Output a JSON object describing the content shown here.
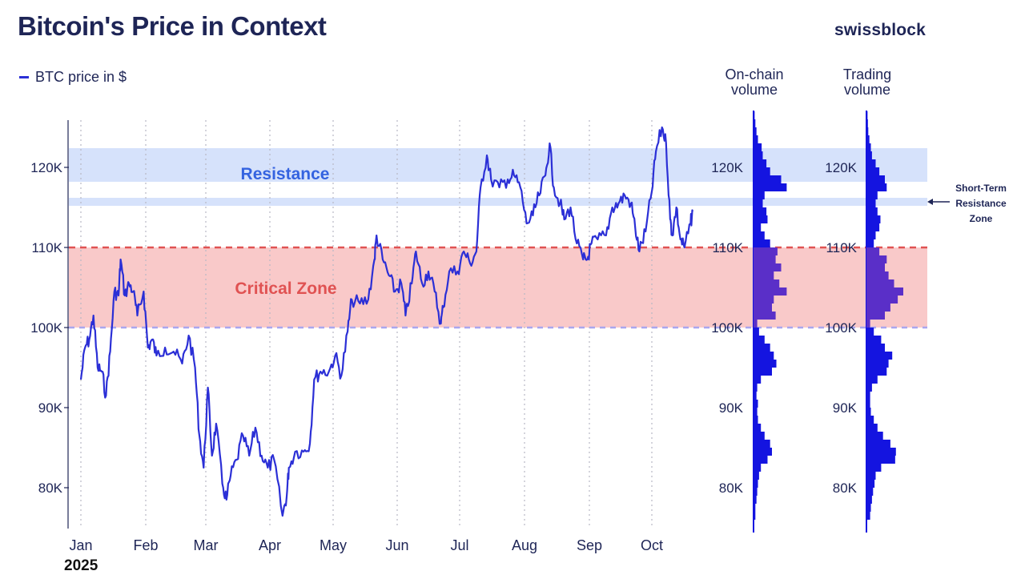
{
  "header": {
    "title": "Bitcoin's Price in Context",
    "brand": "swissblock"
  },
  "legend": {
    "label": "BTC price in $"
  },
  "panels": {
    "onchain_title": [
      "On-chain",
      "volume"
    ],
    "trading_title": [
      "Trading",
      "volume"
    ]
  },
  "annotations": {
    "resistance": "Resistance",
    "critical_zone": "Critical Zone",
    "short_term": [
      "Short-Term",
      "Resistance",
      "Zone"
    ]
  },
  "year_label": "2025",
  "colors": {
    "line": "#2b2fd6",
    "resistance_band": "#d6e2fb",
    "critical_band": "#f9c9c9",
    "critical_line": "#e05252",
    "support_line": "#a9a6ee",
    "volume_bar": "#1414e0",
    "volume_overlap": "#5a2fc8",
    "resistance_text": "#3463e0",
    "critical_text": "#e05252"
  },
  "chart_data": {
    "type": "line",
    "title": "Bitcoin's Price in Context",
    "ylabel": "",
    "xlabel": "",
    "y_ticks": [
      80000,
      90000,
      100000,
      110000,
      120000
    ],
    "y_tick_labels": [
      "80K",
      "90K",
      "100K",
      "110K",
      "120K"
    ],
    "ylim": [
      75000,
      127000
    ],
    "x_tick_labels": [
      "Jan",
      "Feb",
      "Mar",
      "Apr",
      "May",
      "Jun",
      "Jul",
      "Aug",
      "Sep",
      "Oct"
    ],
    "series": [
      {
        "name": "BTC price in $",
        "points": [
          [
            "2025-01-01",
            93500
          ],
          [
            "2025-01-03",
            97500
          ],
          [
            "2025-01-05",
            98500
          ],
          [
            "2025-01-07",
            101500
          ],
          [
            "2025-01-09",
            95000
          ],
          [
            "2025-01-11",
            94500
          ],
          [
            "2025-01-13",
            91500
          ],
          [
            "2025-01-15",
            97000
          ],
          [
            "2025-01-17",
            104500
          ],
          [
            "2025-01-19",
            104000
          ],
          [
            "2025-01-20",
            108500
          ],
          [
            "2025-01-22",
            104000
          ],
          [
            "2025-01-24",
            105500
          ],
          [
            "2025-01-26",
            104500
          ],
          [
            "2025-01-28",
            101500
          ],
          [
            "2025-01-31",
            104500
          ],
          [
            "2025-02-02",
            97500
          ],
          [
            "2025-02-04",
            98500
          ],
          [
            "2025-02-06",
            96500
          ],
          [
            "2025-02-10",
            97500
          ],
          [
            "2025-02-14",
            97000
          ],
          [
            "2025-02-18",
            95500
          ],
          [
            "2025-02-21",
            99000
          ],
          [
            "2025-02-24",
            95000
          ],
          [
            "2025-02-26",
            86500
          ],
          [
            "2025-02-28",
            82500
          ],
          [
            "2025-03-02",
            92500
          ],
          [
            "2025-03-04",
            84000
          ],
          [
            "2025-03-06",
            88000
          ],
          [
            "2025-03-09",
            80500
          ],
          [
            "2025-03-11",
            78500
          ],
          [
            "2025-03-13",
            81500
          ],
          [
            "2025-03-16",
            83500
          ],
          [
            "2025-03-19",
            86500
          ],
          [
            "2025-03-22",
            84000
          ],
          [
            "2025-03-25",
            87500
          ],
          [
            "2025-03-28",
            84000
          ],
          [
            "2025-03-31",
            82500
          ],
          [
            "2025-04-03",
            83500
          ],
          [
            "2025-04-07",
            76500
          ],
          [
            "2025-04-09",
            79000
          ],
          [
            "2025-04-10",
            82500
          ],
          [
            "2025-04-13",
            84500
          ],
          [
            "2025-04-17",
            84500
          ],
          [
            "2025-04-20",
            85500
          ],
          [
            "2025-04-22",
            93500
          ],
          [
            "2025-04-25",
            94500
          ],
          [
            "2025-04-29",
            94500
          ],
          [
            "2025-05-02",
            96500
          ],
          [
            "2025-05-05",
            94000
          ],
          [
            "2025-05-08",
            99500
          ],
          [
            "2025-05-10",
            103500
          ],
          [
            "2025-05-14",
            103000
          ],
          [
            "2025-05-18",
            103500
          ],
          [
            "2025-05-21",
            108500
          ],
          [
            "2025-05-22",
            111500
          ],
          [
            "2025-05-25",
            108500
          ],
          [
            "2025-05-28",
            106500
          ],
          [
            "2025-05-31",
            104500
          ],
          [
            "2025-06-03",
            105500
          ],
          [
            "2025-06-05",
            101500
          ],
          [
            "2025-06-08",
            105500
          ],
          [
            "2025-06-10",
            109500
          ],
          [
            "2025-06-13",
            105500
          ],
          [
            "2025-06-16",
            107000
          ],
          [
            "2025-06-19",
            104500
          ],
          [
            "2025-06-22",
            100500
          ],
          [
            "2025-06-23",
            102500
          ],
          [
            "2025-06-26",
            107000
          ],
          [
            "2025-06-30",
            107000
          ],
          [
            "2025-07-03",
            109500
          ],
          [
            "2025-07-06",
            108000
          ],
          [
            "2025-07-09",
            109500
          ],
          [
            "2025-07-11",
            117500
          ],
          [
            "2025-07-14",
            121500
          ],
          [
            "2025-07-16",
            118500
          ],
          [
            "2025-07-20",
            117500
          ],
          [
            "2025-07-24",
            118500
          ],
          [
            "2025-07-27",
            119000
          ],
          [
            "2025-07-30",
            117500
          ],
          [
            "2025-08-02",
            113000
          ],
          [
            "2025-08-05",
            114000
          ],
          [
            "2025-08-08",
            116500
          ],
          [
            "2025-08-11",
            119000
          ],
          [
            "2025-08-13",
            123000
          ],
          [
            "2025-08-15",
            117500
          ],
          [
            "2025-08-18",
            115500
          ],
          [
            "2025-08-20",
            113500
          ],
          [
            "2025-08-23",
            115000
          ],
          [
            "2025-08-26",
            110500
          ],
          [
            "2025-08-29",
            108500
          ],
          [
            "2025-08-31",
            108500
          ],
          [
            "2025-09-02",
            110500
          ],
          [
            "2025-09-05",
            111000
          ],
          [
            "2025-09-09",
            111500
          ],
          [
            "2025-09-12",
            115000
          ],
          [
            "2025-09-15",
            115500
          ],
          [
            "2025-09-18",
            116500
          ],
          [
            "2025-09-21",
            115500
          ],
          [
            "2025-09-23",
            112500
          ],
          [
            "2025-09-25",
            109500
          ],
          [
            "2025-09-28",
            112000
          ],
          [
            "2025-10-01",
            117000
          ],
          [
            "2025-10-03",
            122000
          ],
          [
            "2025-10-06",
            125000
          ],
          [
            "2025-10-08",
            123000
          ],
          [
            "2025-10-10",
            113500
          ],
          [
            "2025-10-11",
            111500
          ],
          [
            "2025-10-13",
            115000
          ],
          [
            "2025-10-15",
            111000
          ],
          [
            "2025-10-17",
            110000
          ],
          [
            "2025-10-20",
            113000
          ],
          [
            "2025-10-21",
            114500
          ]
        ]
      }
    ],
    "zones": {
      "resistance": [
        117500,
        121000
      ],
      "short_term_resistance": [
        115200,
        116200
      ],
      "critical": [
        100000,
        110000
      ]
    },
    "volume_profiles": [
      {
        "name": "On-chain volume",
        "bins": [
          [
            76000,
            0.05
          ],
          [
            77000,
            0.05
          ],
          [
            78000,
            0.08
          ],
          [
            79000,
            0.1
          ],
          [
            80000,
            0.12
          ],
          [
            81000,
            0.15
          ],
          [
            82000,
            0.2
          ],
          [
            83000,
            0.38
          ],
          [
            84000,
            0.5
          ],
          [
            85000,
            0.45
          ],
          [
            86000,
            0.3
          ],
          [
            87000,
            0.2
          ],
          [
            88000,
            0.12
          ],
          [
            89000,
            0.1
          ],
          [
            90000,
            0.12
          ],
          [
            91000,
            0.08
          ],
          [
            92000,
            0.1
          ],
          [
            93000,
            0.2
          ],
          [
            94000,
            0.5
          ],
          [
            95000,
            0.62
          ],
          [
            96000,
            0.55
          ],
          [
            97000,
            0.45
          ],
          [
            98000,
            0.3
          ],
          [
            99000,
            0.15
          ],
          [
            100000,
            0.1
          ],
          [
            101000,
            0.6
          ],
          [
            102000,
            0.5
          ],
          [
            103000,
            0.55
          ],
          [
            104000,
            0.9
          ],
          [
            105000,
            0.7
          ],
          [
            106000,
            0.55
          ],
          [
            107000,
            0.75
          ],
          [
            108000,
            0.6
          ],
          [
            109000,
            0.65
          ],
          [
            110000,
            0.45
          ],
          [
            111000,
            0.3
          ],
          [
            112000,
            0.2
          ],
          [
            113000,
            0.38
          ],
          [
            114000,
            0.35
          ],
          [
            115000,
            0.25
          ],
          [
            116000,
            0.3
          ],
          [
            117000,
            0.9
          ],
          [
            118000,
            0.75
          ],
          [
            119000,
            0.45
          ],
          [
            120000,
            0.35
          ],
          [
            121000,
            0.25
          ],
          [
            122000,
            0.22
          ],
          [
            123000,
            0.12
          ],
          [
            124000,
            0.08
          ],
          [
            125000,
            0.05
          ],
          [
            126000,
            0.03
          ]
        ]
      },
      {
        "name": "Trading volume",
        "bins": [
          [
            76000,
            0.1
          ],
          [
            77000,
            0.12
          ],
          [
            78000,
            0.15
          ],
          [
            79000,
            0.18
          ],
          [
            80000,
            0.22
          ],
          [
            81000,
            0.25
          ],
          [
            82000,
            0.4
          ],
          [
            83000,
            0.78
          ],
          [
            84000,
            0.8
          ],
          [
            85000,
            0.65
          ],
          [
            86000,
            0.45
          ],
          [
            87000,
            0.3
          ],
          [
            88000,
            0.2
          ],
          [
            89000,
            0.12
          ],
          [
            90000,
            0.1
          ],
          [
            91000,
            0.1
          ],
          [
            92000,
            0.15
          ],
          [
            93000,
            0.3
          ],
          [
            94000,
            0.55
          ],
          [
            95000,
            0.6
          ],
          [
            96000,
            0.7
          ],
          [
            97000,
            0.5
          ],
          [
            98000,
            0.4
          ],
          [
            99000,
            0.2
          ],
          [
            100000,
            0.1
          ],
          [
            101000,
            0.5
          ],
          [
            102000,
            0.65
          ],
          [
            103000,
            0.85
          ],
          [
            104000,
            1.0
          ],
          [
            105000,
            0.75
          ],
          [
            106000,
            0.6
          ],
          [
            107000,
            0.5
          ],
          [
            108000,
            0.55
          ],
          [
            109000,
            0.35
          ],
          [
            110000,
            0.2
          ],
          [
            111000,
            0.25
          ],
          [
            112000,
            0.35
          ],
          [
            113000,
            0.38
          ],
          [
            114000,
            0.3
          ],
          [
            115000,
            0.25
          ],
          [
            116000,
            0.3
          ],
          [
            117000,
            0.55
          ],
          [
            118000,
            0.5
          ],
          [
            119000,
            0.35
          ],
          [
            120000,
            0.25
          ],
          [
            121000,
            0.15
          ],
          [
            122000,
            0.12
          ],
          [
            123000,
            0.08
          ],
          [
            124000,
            0.05
          ],
          [
            125000,
            0.04
          ],
          [
            126000,
            0.03
          ]
        ]
      }
    ],
    "volume_tick_labels": [
      "80K",
      "90K",
      "100K",
      "110K",
      "120K"
    ],
    "legend_position": "top-left"
  }
}
